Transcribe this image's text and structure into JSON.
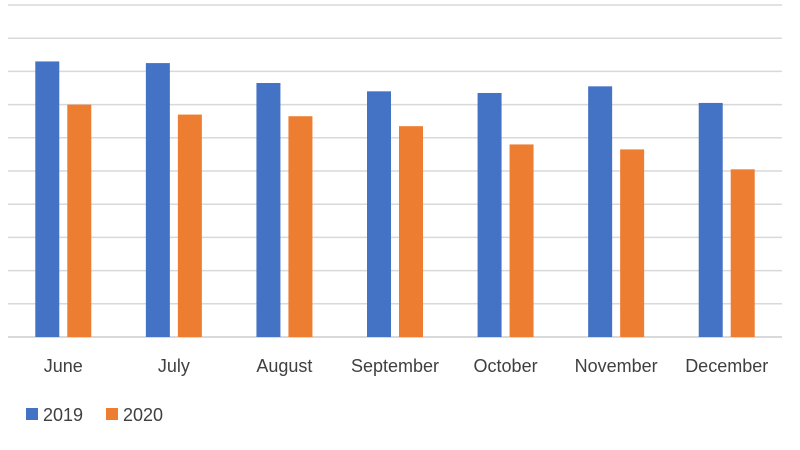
{
  "chart_data": {
    "type": "bar",
    "categories": [
      "June",
      "July",
      "August",
      "September",
      "October",
      "November",
      "December"
    ],
    "series": [
      {
        "name": "2019",
        "color": "#4472C4",
        "values": [
          8.3,
          8.25,
          7.65,
          7.4,
          7.35,
          7.55,
          7.05
        ]
      },
      {
        "name": "2020",
        "color": "#ED7D31",
        "values": [
          7.0,
          6.7,
          6.65,
          6.35,
          5.8,
          5.65,
          5.05
        ]
      }
    ],
    "title": "",
    "xlabel": "",
    "ylabel": "",
    "ylim": [
      0,
      10
    ],
    "gridlines": true,
    "y_tick_labels_shown": false,
    "legend_position": "bottom-left"
  }
}
